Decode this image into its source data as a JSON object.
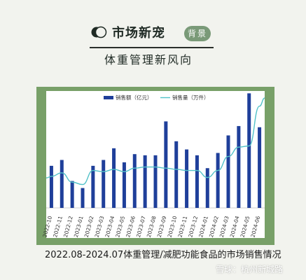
{
  "header": {
    "title": "市场新宠",
    "badge": "背景",
    "subtitle": "体重管理新风向"
  },
  "caption": "2022.08-2024.07体重管理/减肥功能食品的市场销售情况",
  "watermark": "雪球：杭州新城路",
  "colors": {
    "bar": "#1f3f9a",
    "line": "#52c2c8",
    "frame": "#78a068",
    "badge": "#7a9a78"
  },
  "chart_data": {
    "type": "bar",
    "title": "",
    "xlabel": "",
    "ylabel": "",
    "categories": [
      "2022-10",
      "2022-11",
      "2022-12",
      "2023-01",
      "2023-02",
      "2023-03",
      "2023-04",
      "2023-05",
      "2023-06",
      "2023-07",
      "2023-08",
      "2023-09",
      "2023-10",
      "2023-11",
      "2023-12",
      "2024-01",
      "2024-02",
      "2024-03",
      "2024-04",
      "2024-05",
      "2024-06"
    ],
    "legend_position": "top",
    "grid": false,
    "ylim": [
      0,
      10
    ],
    "y2lim": [
      0,
      10
    ],
    "series": [
      {
        "name": "销售额（亿元）",
        "type": "bar",
        "values": [
          3.6,
          4.1,
          2.3,
          1.7,
          3.6,
          4.1,
          5.1,
          3.9,
          4.6,
          4.5,
          4.5,
          7.4,
          5.7,
          5.0,
          4.5,
          3.4,
          4.7,
          6.2,
          7.0,
          9.8,
          6.9
        ]
      },
      {
        "name": "销售量（万件）",
        "type": "line",
        "axis": "right",
        "values": [
          2.7,
          3.0,
          2.2,
          2.0,
          3.2,
          3.1,
          3.3,
          3.1,
          3.4,
          3.5,
          3.5,
          3.4,
          3.3,
          3.2,
          3.2,
          2.6,
          3.2,
          4.4,
          5.2,
          5.3,
          8.7
        ]
      }
    ]
  }
}
